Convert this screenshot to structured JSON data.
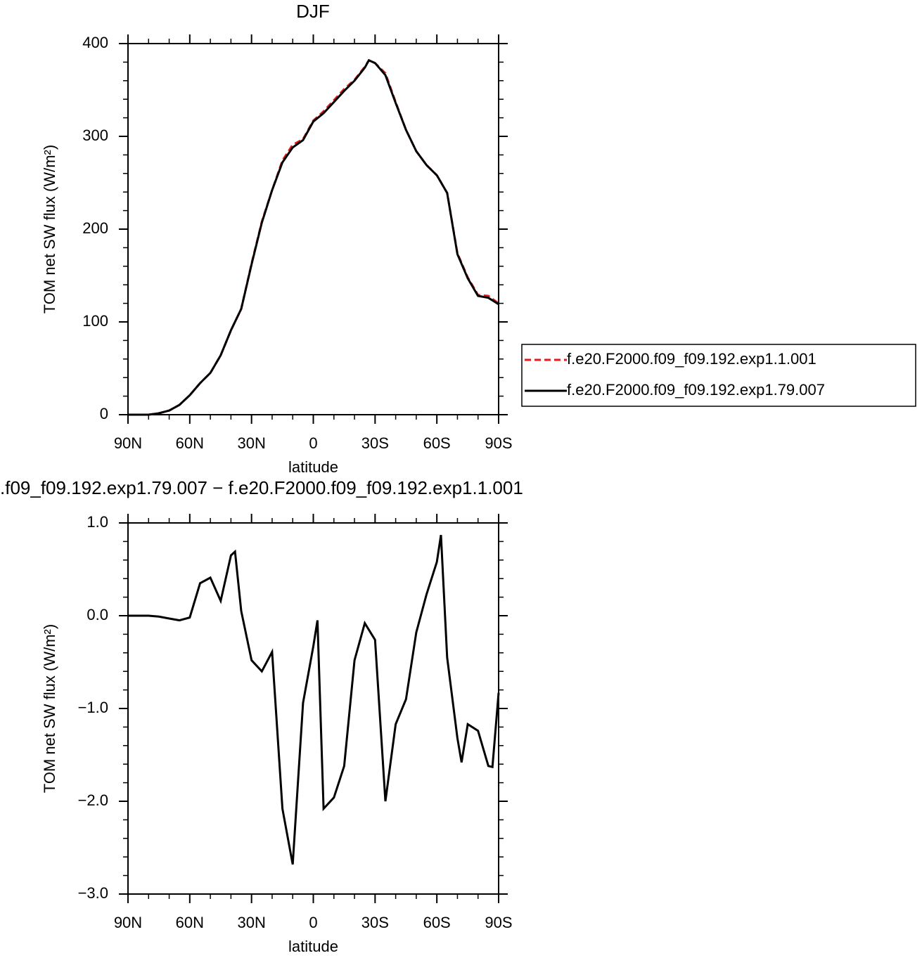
{
  "chart_data": [
    {
      "type": "line",
      "title": "DJF",
      "xlabel": "latitude",
      "ylabel": "TOM net SW flux (W/m²)",
      "x": [
        90,
        85,
        80,
        75,
        70,
        65,
        60,
        55,
        50,
        45,
        40,
        35,
        30,
        25,
        20,
        15,
        10,
        5,
        0,
        -5,
        -10,
        -15,
        -20,
        -25,
        -27,
        -30,
        -35,
        -40,
        -45,
        -50,
        -55,
        -60,
        -65,
        -70,
        -75,
        -80,
        -85,
        -90
      ],
      "series": [
        {
          "name": "f.e20.F2000.f09_f09.192.exp1.1.001",
          "color": "#e41a1c",
          "dash": true,
          "values": [
            0,
            0,
            0,
            1.5,
            4.5,
            10.6,
            21,
            34,
            45,
            64,
            91,
            114,
            163,
            208,
            242,
            274,
            291,
            297,
            317,
            327,
            339,
            351,
            361,
            375,
            382,
            379,
            368,
            337,
            307,
            284,
            269,
            258,
            239,
            174,
            148,
            129,
            128,
            120
          ]
        },
        {
          "name": "f.e20.F2000.f09_f09.192.exp1.79.007",
          "color": "#000000",
          "dash": false,
          "values": [
            0,
            0,
            0,
            1.5,
            4.5,
            10.6,
            21,
            34,
            45,
            64,
            91,
            114,
            162,
            207,
            242,
            272,
            288,
            296,
            316,
            325,
            337,
            349,
            360,
            374,
            382,
            379,
            366,
            336,
            307,
            284,
            269,
            258,
            239,
            173,
            147,
            128,
            126,
            119
          ]
        }
      ],
      "xlim": [
        90,
        -90
      ],
      "xticks": [
        {
          "value": 90,
          "label": "90N"
        },
        {
          "value": 60,
          "label": "60N"
        },
        {
          "value": 30,
          "label": "30N"
        },
        0,
        {
          "value": -30,
          "label": "30S"
        },
        {
          "value": -60,
          "label": "60S"
        },
        {
          "value": -90,
          "label": "90S"
        }
      ],
      "ylim": [
        0,
        400
      ],
      "yticks": [
        0,
        100,
        200,
        300,
        400
      ],
      "legend": "right"
    },
    {
      "type": "line",
      "title": ".f09_f09.192.exp1.79.007 − f.e20.F2000.f09_f09.192.exp1.1.001",
      "xlabel": "latitude",
      "ylabel": "TOM net SW flux (W/m²)",
      "x": [
        90,
        85,
        80,
        75,
        70,
        65,
        60,
        55,
        50,
        45,
        40,
        38,
        35,
        30,
        25,
        20,
        15,
        10,
        5,
        0,
        -2,
        -5,
        -10,
        -15,
        -20,
        -25,
        -30,
        -35,
        -40,
        -45,
        -50,
        -55,
        -60,
        -62,
        -65,
        -70,
        -72,
        -75,
        -80,
        -85,
        -87,
        -90
      ],
      "color": "#000000",
      "values": [
        0,
        0,
        0,
        -0.01,
        -0.03,
        -0.05,
        -0.02,
        0.35,
        0.41,
        0.16,
        0.65,
        0.69,
        0.05,
        -0.48,
        -0.6,
        -0.39,
        -2.08,
        -2.68,
        -0.94,
        -0.33,
        -0.05,
        -2.08,
        -1.96,
        -1.62,
        -0.48,
        -0.08,
        -0.26,
        -2.0,
        -1.17,
        -0.9,
        -0.18,
        0.23,
        0.58,
        0.87,
        -0.45,
        -1.32,
        -1.58,
        -1.17,
        -1.24,
        -1.62,
        -1.63,
        -0.83
      ],
      "xlim": [
        90,
        -90
      ],
      "xticks": [
        {
          "value": 90,
          "label": "90N"
        },
        {
          "value": 60,
          "label": "60N"
        },
        {
          "value": 30,
          "label": "30N"
        },
        0,
        {
          "value": -30,
          "label": "30S"
        },
        {
          "value": -60,
          "label": "60S"
        },
        {
          "value": -90,
          "label": "90S"
        }
      ],
      "ylim": [
        -3,
        1
      ],
      "yticks": [
        {
          "value": -3,
          "label": "−3.0"
        },
        {
          "value": -2,
          "label": "−2.0"
        },
        {
          "value": -1,
          "label": "−1.0"
        },
        {
          "value": 0,
          "label": "0.0"
        },
        {
          "value": 1,
          "label": "1.0"
        }
      ]
    }
  ]
}
